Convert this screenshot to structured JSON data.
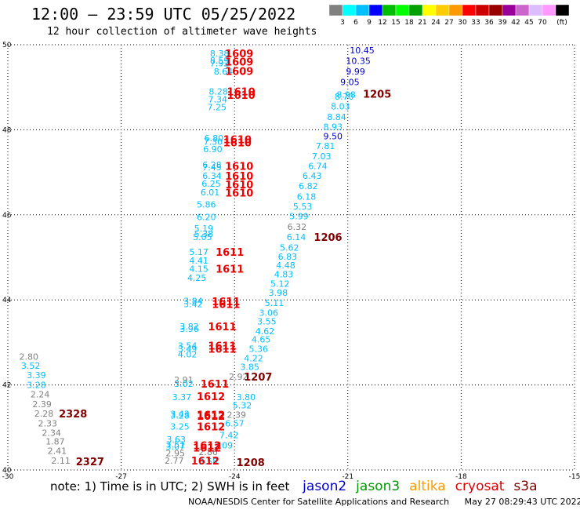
{
  "header": {
    "title": "12:00 – 23:59 UTC 05/25/2022",
    "subtitle": "12 hour collection of altimeter wave heights"
  },
  "colorbar": {
    "colors": [
      "#808080",
      "#00ffff",
      "#00bfff",
      "#0000ff",
      "#00bf00",
      "#00ff00",
      "#00a000",
      "#ffff00",
      "#ffcc00",
      "#ff9900",
      "#ff0000",
      "#cc0000",
      "#990000",
      "#990099",
      "#cc66cc",
      "#ddbbff",
      "#ff99ff",
      "#000000"
    ],
    "labels": [
      "3",
      "6",
      "9",
      "12",
      "15",
      "18",
      "21",
      "24",
      "27",
      "30",
      "33",
      "36",
      "39",
      "42",
      "45",
      "70"
    ],
    "unit": "(ft)"
  },
  "map": {
    "lon_range": [
      -30,
      -15
    ],
    "lat_range": [
      40,
      50
    ],
    "x_ticks": [
      {
        "v": -30,
        "label": "-30"
      },
      {
        "v": -27,
        "label": "-27"
      },
      {
        "v": -24,
        "label": "-24"
      },
      {
        "v": -21,
        "label": "-21"
      },
      {
        "v": -18,
        "label": "-18"
      },
      {
        "v": -15,
        "label": "-15"
      }
    ],
    "y_ticks": [
      {
        "v": 40,
        "label": "40"
      },
      {
        "v": 42,
        "label": "42"
      },
      {
        "v": 44,
        "label": "44"
      },
      {
        "v": 46,
        "label": "46"
      },
      {
        "v": 48,
        "label": "48"
      },
      {
        "v": 50,
        "label": "50"
      }
    ],
    "grid": true
  },
  "chart_data": {
    "type": "scatter",
    "xlabel": "",
    "ylabel": "",
    "xlim": [
      -30,
      -15
    ],
    "ylim": [
      40,
      50
    ],
    "wave_heights": [
      {
        "lon": -24.65,
        "lat": 49.8,
        "text": "8.38",
        "color": "#00bfff"
      },
      {
        "lon": -24.65,
        "lat": 49.63,
        "text": "8.59",
        "color": "#00bfff"
      },
      {
        "lon": -24.65,
        "lat": 49.57,
        "text": "7.92",
        "color": "#00bfff"
      },
      {
        "lon": -24.55,
        "lat": 49.37,
        "text": "8.64",
        "color": "#00bfff"
      },
      {
        "lon": -24.68,
        "lat": 48.9,
        "text": "8.28",
        "color": "#00bfff"
      },
      {
        "lon": -24.7,
        "lat": 48.72,
        "text": "7.34",
        "color": "#00bfff"
      },
      {
        "lon": -24.72,
        "lat": 48.53,
        "text": "7.25",
        "color": "#00bfff"
      },
      {
        "lon": -24.8,
        "lat": 47.8,
        "text": "6.80",
        "color": "#00bfff"
      },
      {
        "lon": -24.82,
        "lat": 47.72,
        "text": "7.30",
        "color": "#00bfff"
      },
      {
        "lon": -24.83,
        "lat": 47.55,
        "text": "6.90",
        "color": "#00bfff"
      },
      {
        "lon": -24.85,
        "lat": 47.18,
        "text": "6.28",
        "color": "#00bfff"
      },
      {
        "lon": -24.85,
        "lat": 47.12,
        "text": "7.45",
        "color": "#00bfff"
      },
      {
        "lon": -24.85,
        "lat": 46.92,
        "text": "6.34",
        "color": "#00bfff"
      },
      {
        "lon": -24.87,
        "lat": 46.73,
        "text": "6.25",
        "color": "#00bfff"
      },
      {
        "lon": -24.9,
        "lat": 46.53,
        "text": "6.01",
        "color": "#00bfff"
      },
      {
        "lon": -25.0,
        "lat": 46.25,
        "text": "5.86",
        "color": "#00bfff"
      },
      {
        "lon": -25.0,
        "lat": 45.95,
        "text": "6.20",
        "color": "#00bfff"
      },
      {
        "lon": -25.07,
        "lat": 45.68,
        "text": "5.19",
        "color": "#00bfff"
      },
      {
        "lon": -25.07,
        "lat": 45.55,
        "text": "5.38",
        "color": "#00bfff"
      },
      {
        "lon": -25.1,
        "lat": 45.48,
        "text": "5.05",
        "color": "#00bfff"
      },
      {
        "lon": -25.2,
        "lat": 45.13,
        "text": "5.17",
        "color": "#00bfff"
      },
      {
        "lon": -25.2,
        "lat": 44.93,
        "text": "4.41",
        "color": "#00bfff"
      },
      {
        "lon": -25.2,
        "lat": 44.73,
        "text": "4.15",
        "color": "#00bfff"
      },
      {
        "lon": -25.25,
        "lat": 44.52,
        "text": "4.25",
        "color": "#00bfff"
      },
      {
        "lon": -25.35,
        "lat": 43.98,
        "text": "3.84",
        "color": "#00bfff"
      },
      {
        "lon": -25.35,
        "lat": 43.9,
        "text": "3.42",
        "color": "#00bfff"
      },
      {
        "lon": -25.45,
        "lat": 43.38,
        "text": "3.82",
        "color": "#00bfff"
      },
      {
        "lon": -25.45,
        "lat": 43.32,
        "text": "3.96",
        "color": "#00bfff"
      },
      {
        "lon": -25.5,
        "lat": 42.92,
        "text": "3.54",
        "color": "#00bfff"
      },
      {
        "lon": -25.5,
        "lat": 42.85,
        "text": "3.49",
        "color": "#00bfff"
      },
      {
        "lon": -25.5,
        "lat": 42.72,
        "text": "4.02",
        "color": "#00bfff"
      },
      {
        "lon": -25.6,
        "lat": 42.12,
        "text": "2.91",
        "color": "#808080"
      },
      {
        "lon": -25.6,
        "lat": 42.03,
        "text": "3.02",
        "color": "#00bfff"
      },
      {
        "lon": -25.65,
        "lat": 41.72,
        "text": "3.37",
        "color": "#00bfff"
      },
      {
        "lon": -25.7,
        "lat": 41.32,
        "text": "3.43",
        "color": "#00bfff"
      },
      {
        "lon": -25.7,
        "lat": 41.28,
        "text": "3.28",
        "color": "#00bfff"
      },
      {
        "lon": -25.7,
        "lat": 41.02,
        "text": "3.25",
        "color": "#00bfff"
      },
      {
        "lon": -25.8,
        "lat": 40.72,
        "text": "3.63",
        "color": "#00bfff"
      },
      {
        "lon": -25.82,
        "lat": 40.6,
        "text": "3.51",
        "color": "#00bfff"
      },
      {
        "lon": -25.82,
        "lat": 40.55,
        "text": "3.07",
        "color": "#00bfff"
      },
      {
        "lon": -25.82,
        "lat": 40.4,
        "text": "2.95",
        "color": "#808080"
      },
      {
        "lon": -25.85,
        "lat": 40.22,
        "text": "2.77",
        "color": "#808080"
      },
      {
        "lon": -24.95,
        "lat": 40.42,
        "text": "2.86",
        "color": "#808080"
      },
      {
        "lon": -24.95,
        "lat": 40.2,
        "text": "3.58",
        "color": "#00bfff"
      },
      {
        "lon": -24.55,
        "lat": 40.58,
        "text": "3.09",
        "color": "#00bfff"
      },
      {
        "lon": -24.4,
        "lat": 40.82,
        "text": "7.42",
        "color": "#00bfff"
      },
      {
        "lon": -24.25,
        "lat": 41.1,
        "text": "6.57",
        "color": "#00bfff"
      },
      {
        "lon": -24.2,
        "lat": 41.3,
        "text": "2.39",
        "color": "#808080"
      },
      {
        "lon": -24.05,
        "lat": 41.52,
        "text": "5.32",
        "color": "#00bfff"
      },
      {
        "lon": -23.95,
        "lat": 41.72,
        "text": "3.80",
        "color": "#00bfff"
      },
      {
        "lon": -24.15,
        "lat": 42.2,
        "text": "2.92",
        "color": "#808080"
      },
      {
        "lon": -23.85,
        "lat": 42.43,
        "text": "3.85",
        "color": "#00bfff"
      },
      {
        "lon": -23.75,
        "lat": 42.63,
        "text": "4.22",
        "color": "#00bfff"
      },
      {
        "lon": -23.62,
        "lat": 42.85,
        "text": "5.36",
        "color": "#00bfff"
      },
      {
        "lon": -23.55,
        "lat": 43.07,
        "text": "4.65",
        "color": "#00bfff"
      },
      {
        "lon": -23.45,
        "lat": 43.27,
        "text": "4.62",
        "color": "#00bfff"
      },
      {
        "lon": -23.4,
        "lat": 43.5,
        "text": "3.55",
        "color": "#00bfff"
      },
      {
        "lon": -23.35,
        "lat": 43.7,
        "text": "3.06",
        "color": "#00bfff"
      },
      {
        "lon": -23.2,
        "lat": 43.93,
        "text": "5.11",
        "color": "#00bfff"
      },
      {
        "lon": -23.1,
        "lat": 44.17,
        "text": "3.98",
        "color": "#00bfff"
      },
      {
        "lon": -23.05,
        "lat": 44.38,
        "text": "5.12",
        "color": "#00bfff"
      },
      {
        "lon": -22.95,
        "lat": 44.6,
        "text": "4.83",
        "color": "#00bfff"
      },
      {
        "lon": -22.9,
        "lat": 44.82,
        "text": "4.48",
        "color": "#00bfff"
      },
      {
        "lon": -22.85,
        "lat": 45.02,
        "text": "6.83",
        "color": "#00bfff"
      },
      {
        "lon": -22.8,
        "lat": 45.23,
        "text": "5.62",
        "color": "#00bfff"
      },
      {
        "lon": -22.62,
        "lat": 45.48,
        "text": "6.14",
        "color": "#00bfff"
      },
      {
        "lon": -22.6,
        "lat": 45.72,
        "text": "6.32",
        "color": "#808080"
      },
      {
        "lon": -22.55,
        "lat": 45.97,
        "text": "5.99",
        "color": "#00bfff"
      },
      {
        "lon": -22.45,
        "lat": 46.2,
        "text": "5.53",
        "color": "#00bfff"
      },
      {
        "lon": -22.35,
        "lat": 46.43,
        "text": "6.18",
        "color": "#00bfff"
      },
      {
        "lon": -22.3,
        "lat": 46.68,
        "text": "6.82",
        "color": "#00bfff"
      },
      {
        "lon": -22.2,
        "lat": 46.92,
        "text": "6.43",
        "color": "#00bfff"
      },
      {
        "lon": -22.05,
        "lat": 47.15,
        "text": "6.74",
        "color": "#00bfff"
      },
      {
        "lon": -21.95,
        "lat": 47.38,
        "text": "7.03",
        "color": "#00bfff"
      },
      {
        "lon": -21.85,
        "lat": 47.62,
        "text": "7.81",
        "color": "#00bfff"
      },
      {
        "lon": -21.65,
        "lat": 47.85,
        "text": "9.50",
        "color": "#0000cc"
      },
      {
        "lon": -21.65,
        "lat": 48.07,
        "text": "8.93",
        "color": "#00bfff"
      },
      {
        "lon": -21.55,
        "lat": 48.3,
        "text": "8.84",
        "color": "#00bfff"
      },
      {
        "lon": -21.45,
        "lat": 48.55,
        "text": "8.03",
        "color": "#00bfff"
      },
      {
        "lon": -21.35,
        "lat": 48.78,
        "text": "8.70",
        "color": "#00bfff"
      },
      {
        "lon": -21.3,
        "lat": 48.83,
        "text": "8.98",
        "color": "#00bfff"
      },
      {
        "lon": -21.2,
        "lat": 49.12,
        "text": "9.05",
        "color": "#0000cc"
      },
      {
        "lon": -21.05,
        "lat": 49.37,
        "text": "9.99",
        "color": "#0000cc"
      },
      {
        "lon": -21.05,
        "lat": 49.62,
        "text": "10.35",
        "color": "#0000cc"
      },
      {
        "lon": -20.95,
        "lat": 49.87,
        "text": "10.45",
        "color": "#0000cc"
      },
      {
        "lon": -29.7,
        "lat": 42.67,
        "text": "2.80",
        "color": "#808080"
      },
      {
        "lon": -29.65,
        "lat": 42.45,
        "text": "3.52",
        "color": "#00bfff"
      },
      {
        "lon": -29.5,
        "lat": 42.23,
        "text": "3.39",
        "color": "#00bfff"
      },
      {
        "lon": -29.5,
        "lat": 42.0,
        "text": "3.28",
        "color": "#00bfff"
      },
      {
        "lon": -29.4,
        "lat": 41.78,
        "text": "2.24",
        "color": "#808080"
      },
      {
        "lon": -29.35,
        "lat": 41.55,
        "text": "2.39",
        "color": "#808080"
      },
      {
        "lon": -29.3,
        "lat": 41.33,
        "text": "2.28",
        "color": "#808080"
      },
      {
        "lon": -29.2,
        "lat": 41.1,
        "text": "2.33",
        "color": "#808080"
      },
      {
        "lon": -29.1,
        "lat": 40.88,
        "text": "2.34",
        "color": "#808080"
      },
      {
        "lon": -29.0,
        "lat": 40.67,
        "text": "1.87",
        "color": "#808080"
      },
      {
        "lon": -28.95,
        "lat": 40.45,
        "text": "2.41",
        "color": "#808080"
      },
      {
        "lon": -28.85,
        "lat": 40.22,
        "text": "2.11",
        "color": "#808080"
      }
    ],
    "time_labels": [
      {
        "lon": -24.25,
        "lat": 49.8,
        "text": "1609",
        "color": "#ee0000"
      },
      {
        "lon": -24.25,
        "lat": 49.6,
        "text": "1609",
        "color": "#ee0000"
      },
      {
        "lon": -24.25,
        "lat": 49.38,
        "text": "1609",
        "color": "#ee0000"
      },
      {
        "lon": -24.2,
        "lat": 48.9,
        "text": "1610",
        "color": "#ee0000"
      },
      {
        "lon": -24.2,
        "lat": 48.82,
        "text": "1610",
        "color": "#ee0000"
      },
      {
        "lon": -24.3,
        "lat": 47.78,
        "text": "1610",
        "color": "#ee0000"
      },
      {
        "lon": -24.3,
        "lat": 47.7,
        "text": "1610",
        "color": "#ee0000"
      },
      {
        "lon": -24.25,
        "lat": 47.15,
        "text": "1610",
        "color": "#ee0000"
      },
      {
        "lon": -24.25,
        "lat": 46.92,
        "text": "1610",
        "color": "#ee0000"
      },
      {
        "lon": -24.25,
        "lat": 46.72,
        "text": "1610",
        "color": "#ee0000"
      },
      {
        "lon": -24.25,
        "lat": 46.52,
        "text": "1610",
        "color": "#ee0000"
      },
      {
        "lon": -24.5,
        "lat": 45.13,
        "text": "1611",
        "color": "#ee0000"
      },
      {
        "lon": -24.5,
        "lat": 44.73,
        "text": "1611",
        "color": "#ee0000"
      },
      {
        "lon": -24.6,
        "lat": 43.97,
        "text": "1611",
        "color": "#ee0000"
      },
      {
        "lon": -24.6,
        "lat": 43.9,
        "text": "1611",
        "color": "#ee0000"
      },
      {
        "lon": -24.7,
        "lat": 43.38,
        "text": "1611",
        "color": "#ee0000"
      },
      {
        "lon": -24.7,
        "lat": 42.92,
        "text": "1611",
        "color": "#ee0000"
      },
      {
        "lon": -24.7,
        "lat": 42.85,
        "text": "1611",
        "color": "#ee0000"
      },
      {
        "lon": -24.9,
        "lat": 42.03,
        "text": "1611",
        "color": "#ee0000"
      },
      {
        "lon": -25.0,
        "lat": 41.73,
        "text": "1612",
        "color": "#ee0000"
      },
      {
        "lon": -25.0,
        "lat": 41.3,
        "text": "1612",
        "color": "#ee0000"
      },
      {
        "lon": -25.0,
        "lat": 41.27,
        "text": "1612",
        "color": "#ee0000"
      },
      {
        "lon": -25.0,
        "lat": 41.02,
        "text": "1612",
        "color": "#ee0000"
      },
      {
        "lon": -25.1,
        "lat": 40.58,
        "text": "1612",
        "color": "#ee0000"
      },
      {
        "lon": -25.1,
        "lat": 40.53,
        "text": "1612",
        "color": "#ee0000"
      },
      {
        "lon": -25.15,
        "lat": 40.22,
        "text": "1612",
        "color": "#ee0000"
      },
      {
        "lon": -23.95,
        "lat": 40.18,
        "text": "1208",
        "color": "#800000"
      },
      {
        "lon": -23.75,
        "lat": 42.2,
        "text": "1207",
        "color": "#800000"
      },
      {
        "lon": -21.9,
        "lat": 45.48,
        "text": "1206",
        "color": "#800000"
      },
      {
        "lon": -20.6,
        "lat": 48.85,
        "text": "1205",
        "color": "#800000"
      },
      {
        "lon": -28.65,
        "lat": 41.33,
        "text": "2328",
        "color": "#800000"
      },
      {
        "lon": -28.2,
        "lat": 40.2,
        "text": "2327",
        "color": "#800000"
      }
    ]
  },
  "note": {
    "text": "note:  1) Time is in UTC; 2) SWH is in feet",
    "satellites": [
      {
        "name": "jason2",
        "color": "#0000cc"
      },
      {
        "name": "jason3",
        "color": "#009900"
      },
      {
        "name": "altika",
        "color": "#ff9900"
      },
      {
        "name": "cryosat",
        "color": "#dd0000"
      },
      {
        "name": "s3a",
        "color": "#800000"
      }
    ]
  },
  "footer": {
    "agency": "NOAA/NESDIS Center for Satellite Applications and Research",
    "timestamp": "May 27 08:29:43 UTC 2022"
  }
}
